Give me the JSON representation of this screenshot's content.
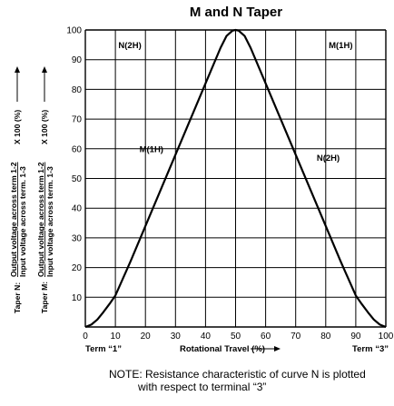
{
  "chart_data": {
    "type": "line",
    "title": "M and N Taper",
    "x_ticks": [
      "0",
      "10",
      "20",
      "30",
      "40",
      "50",
      "60",
      "70",
      "80",
      "90",
      "100"
    ],
    "y_ticks": [
      "10",
      "20",
      "30",
      "40",
      "50",
      "60",
      "70",
      "80",
      "90",
      "100"
    ],
    "xlim": [
      0,
      100
    ],
    "ylim": [
      0,
      100
    ],
    "grid": true,
    "x_start_label": "Term “1”",
    "xlabel": "Rotational Travel (%)",
    "x_end_label": "Term “3”",
    "ylabel_lines": [
      {
        "prefix": "Taper N:",
        "numerator": "Output voltage across term 1-2",
        "denominator": "Input voltage across term. 1-3",
        "suffix": "X 100 (%)"
      },
      {
        "prefix": "Taper M:",
        "numerator": "Output voltage across term 1-2",
        "denominator": "Input voltage across term. 1-3",
        "suffix": "X 100 (%)"
      }
    ],
    "annotations": [
      {
        "text": "N(2H)",
        "x": 11,
        "y": 95
      },
      {
        "text": "M(1H)",
        "x": 81,
        "y": 95
      },
      {
        "text": "M(1H)",
        "x": 18,
        "y": 60
      },
      {
        "text": "N(2H)",
        "x": 77,
        "y": 57
      }
    ],
    "series": [
      {
        "x": [
          0,
          2,
          4,
          6,
          8,
          10,
          15,
          20,
          25,
          30,
          35,
          40,
          45,
          47,
          49,
          50,
          51,
          53,
          55,
          60,
          65,
          70,
          75,
          80,
          85,
          90,
          92,
          94,
          96,
          98,
          100
        ],
        "y": [
          0,
          0.8,
          2.5,
          5,
          7.7,
          10.6,
          22,
          34,
          46,
          58,
          70,
          82,
          94,
          98,
          99.8,
          100,
          99.8,
          98,
          94,
          82,
          70,
          58,
          46,
          34,
          22,
          10.6,
          7.7,
          5,
          2.5,
          0.8,
          0
        ]
      }
    ]
  },
  "note": {
    "line1": "NOTE: Resistance characteristic of curve N is plotted",
    "line2": "with respect to terminal “3”"
  }
}
